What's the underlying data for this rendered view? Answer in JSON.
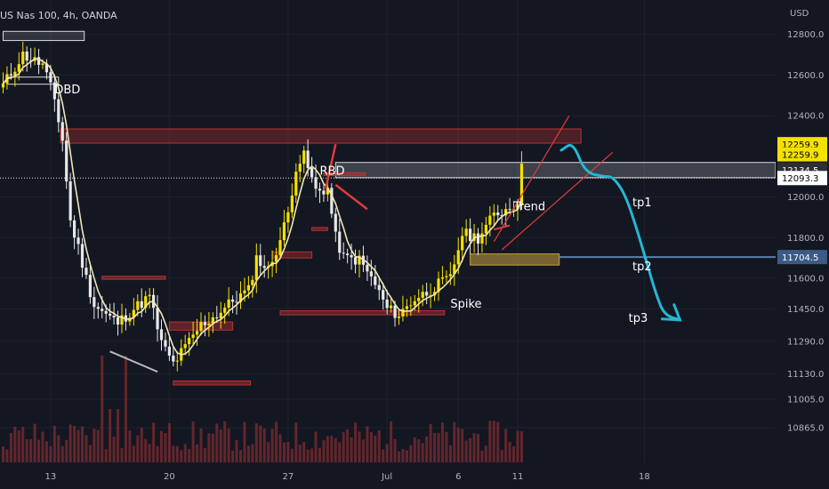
{
  "header": {
    "symbol_label": "US Nas 100, 4h, OANDA"
  },
  "chart_data": {
    "type": "candlestick",
    "title": "US Nas 100, 4h, OANDA",
    "currency": "USD",
    "ylim": [
      10760,
      12860
    ],
    "price_ticks": [
      "12800.0",
      "12600.0",
      "12400.0",
      "12000.0",
      "11800.0",
      "11600.0",
      "11450.0",
      "11290.0",
      "11130.0",
      "11005.0",
      "10865.0"
    ],
    "time_ticks": [
      {
        "label": "13",
        "i": 12
      },
      {
        "label": "20",
        "i": 42
      },
      {
        "label": "27",
        "i": 72
      },
      {
        "label": "Jul",
        "i": 97
      },
      {
        "label": "6",
        "i": 115
      },
      {
        "label": "11",
        "i": 130
      },
      {
        "label": "18",
        "i": 162
      }
    ],
    "price_badges": [
      {
        "label": "12259.9",
        "price": 12259.9,
        "color": "#f5e100",
        "text": "#000000"
      },
      {
        "label": "12259.9",
        "price": 12210,
        "color": "#f5e100",
        "text": "#000000"
      },
      {
        "label": "12134.5",
        "price": 12134.5,
        "color": "#2d2f35",
        "text": "#ffffff"
      },
      {
        "label": "12093.3",
        "price": 12093.3,
        "color": "#ffffff",
        "text": "#000000"
      },
      {
        "label": "11704.5",
        "price": 11704.5,
        "color": "#3b5a85",
        "text": "#ffffff"
      }
    ],
    "annotations": [
      {
        "text": "DBD",
        "i": 13,
        "price": 12510
      },
      {
        "text": "RBD",
        "i": 80,
        "price": 12110
      },
      {
        "text": "Trend",
        "i": 129,
        "price": 11935
      },
      {
        "text": "tp1",
        "i": 159,
        "price": 11955
      },
      {
        "text": "tp2",
        "i": 159,
        "price": 11640
      },
      {
        "text": "tp3",
        "i": 158,
        "price": 11385
      },
      {
        "text": "Spike",
        "i": 113,
        "price": 11455
      }
    ],
    "waypoints": [
      [
        0,
        12550
      ],
      [
        5,
        12700
      ],
      [
        10,
        12650
      ],
      [
        13,
        12480
      ],
      [
        15,
        12280
      ],
      [
        17,
        11880
      ],
      [
        19,
        11750
      ],
      [
        21,
        11600
      ],
      [
        23,
        11470
      ],
      [
        26,
        11420
      ],
      [
        29,
        11380
      ],
      [
        33,
        11450
      ],
      [
        37,
        11510
      ],
      [
        40,
        11280
      ],
      [
        43,
        11180
      ],
      [
        46,
        11260
      ],
      [
        50,
        11370
      ],
      [
        54,
        11420
      ],
      [
        58,
        11490
      ],
      [
        62,
        11540
      ],
      [
        64,
        11700
      ],
      [
        67,
        11640
      ],
      [
        70,
        11790
      ],
      [
        72,
        11920
      ],
      [
        74,
        12150
      ],
      [
        76,
        12200
      ],
      [
        79,
        12030
      ],
      [
        82,
        12040
      ],
      [
        84,
        11800
      ],
      [
        86,
        11700
      ],
      [
        90,
        11690
      ],
      [
        94,
        11570
      ],
      [
        97,
        11450
      ],
      [
        100,
        11420
      ],
      [
        104,
        11500
      ],
      [
        107,
        11530
      ],
      [
        110,
        11570
      ],
      [
        113,
        11600
      ],
      [
        116,
        11820
      ],
      [
        120,
        11800
      ],
      [
        124,
        11910
      ],
      [
        127,
        11940
      ],
      [
        130,
        11980
      ],
      [
        131,
        12140
      ]
    ],
    "colors": {
      "up": "#f5e100",
      "down": "#e8e8e8",
      "volume": "#c53a3a",
      "ma": "#f2e6b8",
      "forecast": "#26b6d4",
      "trend": "#e03b3b",
      "zone_red": "#b83232",
      "zone_white": "#d8dbe0",
      "zone_orange": "#c8a040",
      "tp_line": "#5c7fa8"
    }
  }
}
